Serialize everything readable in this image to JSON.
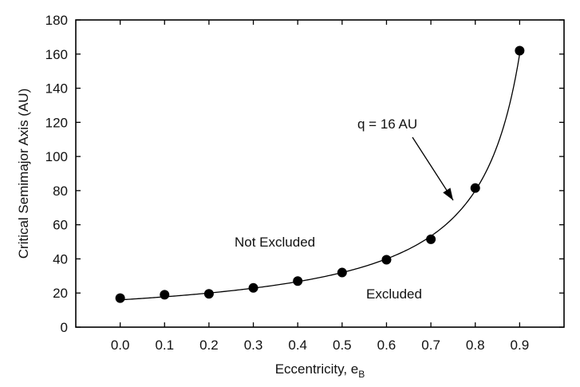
{
  "chart_data": {
    "type": "scatter",
    "xlabel": "Eccentricity, e",
    "xlabel_subscript": "B",
    "ylabel": "Critical Semimajor Axis (AU)",
    "xlim": [
      -0.1,
      1.0
    ],
    "ylim": [
      0,
      180
    ],
    "x_ticks": [
      "0.0",
      "0.1",
      "0.2",
      "0.3",
      "0.4",
      "0.5",
      "0.6",
      "0.7",
      "0.8",
      "0.9"
    ],
    "y_ticks": [
      "0",
      "20",
      "40",
      "60",
      "80",
      "100",
      "120",
      "140",
      "160",
      "180"
    ],
    "grid": false,
    "series": [
      {
        "marker": "circle",
        "x": [
          0.0,
          0.1,
          0.2,
          0.3,
          0.4,
          0.5,
          0.6,
          0.7,
          0.8,
          0.9
        ],
        "y": [
          17,
          19,
          19.5,
          23,
          27,
          32,
          39.5,
          51.5,
          81.5,
          162
        ]
      }
    ],
    "curve": {
      "label": "q = 16 AU",
      "formula": "a = q / (1 - e)",
      "q": 16
    },
    "region_labels": [
      "Not Excluded",
      "Excluded"
    ],
    "color": "#000000"
  }
}
